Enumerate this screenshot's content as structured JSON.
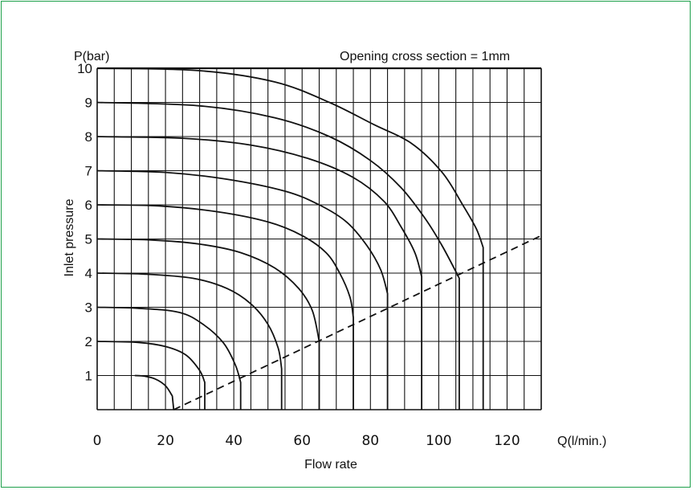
{
  "chart_data": {
    "type": "line",
    "title": "",
    "annotation": "Opening cross section = 1mm",
    "xlabel": "Flow rate",
    "ylabel": "Inlet pressure",
    "x_unit_label": "Q(l/min.)",
    "y_unit_label": "P(bar)",
    "xlim": [
      0,
      130
    ],
    "ylim": [
      0,
      10
    ],
    "x_tick_labels": [
      0,
      20,
      40,
      60,
      80,
      100,
      120
    ],
    "y_tick_labels": [
      1,
      2,
      3,
      4,
      5,
      6,
      7,
      8,
      9,
      10
    ],
    "grid": true,
    "series": [
      {
        "points": [
          [
            11,
            1.0
          ],
          [
            14,
            0.98
          ],
          [
            17,
            0.9
          ],
          [
            20,
            0.7
          ],
          [
            22,
            0.4
          ],
          [
            22.4,
            0
          ]
        ]
      },
      {
        "points": [
          [
            0,
            2.0
          ],
          [
            12,
            1.97
          ],
          [
            20,
            1.85
          ],
          [
            26,
            1.6
          ],
          [
            30,
            1.15
          ],
          [
            31.5,
            0.8
          ],
          [
            31.5,
            0
          ]
        ]
      },
      {
        "points": [
          [
            0,
            3.0
          ],
          [
            12,
            2.97
          ],
          [
            24,
            2.85
          ],
          [
            31,
            2.5
          ],
          [
            37,
            1.95
          ],
          [
            40.5,
            1.3
          ],
          [
            42,
            0.8
          ],
          [
            42,
            0
          ]
        ]
      },
      {
        "points": [
          [
            0,
            4.0
          ],
          [
            14,
            3.97
          ],
          [
            28,
            3.85
          ],
          [
            38,
            3.55
          ],
          [
            45,
            3.1
          ],
          [
            50,
            2.5
          ],
          [
            53,
            1.8
          ],
          [
            54,
            1.2
          ],
          [
            54,
            0
          ]
        ]
      },
      {
        "points": [
          [
            0,
            5.0
          ],
          [
            16,
            4.97
          ],
          [
            30,
            4.85
          ],
          [
            42,
            4.6
          ],
          [
            52,
            4.15
          ],
          [
            59,
            3.55
          ],
          [
            63,
            2.9
          ],
          [
            65,
            2.0
          ],
          [
            65,
            0
          ]
        ]
      },
      {
        "points": [
          [
            0,
            6.0
          ],
          [
            18,
            5.97
          ],
          [
            35,
            5.8
          ],
          [
            50,
            5.5
          ],
          [
            60,
            5.1
          ],
          [
            67,
            4.6
          ],
          [
            71,
            4.0
          ],
          [
            74,
            3.3
          ],
          [
            75,
            2.7
          ],
          [
            75,
            0
          ]
        ]
      },
      {
        "points": [
          [
            0,
            7.0
          ],
          [
            20,
            6.95
          ],
          [
            38,
            6.75
          ],
          [
            55,
            6.4
          ],
          [
            65,
            6.0
          ],
          [
            73,
            5.5
          ],
          [
            79,
            4.8
          ],
          [
            83,
            4.1
          ],
          [
            85,
            3.4
          ],
          [
            85,
            0
          ]
        ]
      },
      {
        "points": [
          [
            0,
            8.0
          ],
          [
            25,
            7.95
          ],
          [
            45,
            7.75
          ],
          [
            62,
            7.35
          ],
          [
            75,
            6.8
          ],
          [
            84,
            6.1
          ],
          [
            89,
            5.35
          ],
          [
            93,
            4.6
          ],
          [
            95,
            3.9
          ],
          [
            95,
            0
          ]
        ]
      },
      {
        "points": [
          [
            0,
            9.0
          ],
          [
            30,
            8.9
          ],
          [
            52,
            8.55
          ],
          [
            68,
            8.0
          ],
          [
            80,
            7.3
          ],
          [
            89,
            6.5
          ],
          [
            96,
            5.6
          ],
          [
            101,
            4.8
          ],
          [
            106,
            3.85
          ],
          [
            106,
            0
          ]
        ]
      },
      {
        "points": [
          [
            0,
            10.0
          ],
          [
            30,
            9.93
          ],
          [
            52,
            9.6
          ],
          [
            68,
            9.0
          ],
          [
            81,
            8.35
          ],
          [
            92,
            7.8
          ],
          [
            101,
            6.95
          ],
          [
            107,
            6.0
          ],
          [
            111,
            5.3
          ],
          [
            113,
            4.75
          ],
          [
            113,
            0
          ]
        ]
      },
      {
        "dashed": true,
        "points": [
          [
            22.4,
            0
          ],
          [
            130,
            5.1
          ]
        ]
      }
    ]
  }
}
